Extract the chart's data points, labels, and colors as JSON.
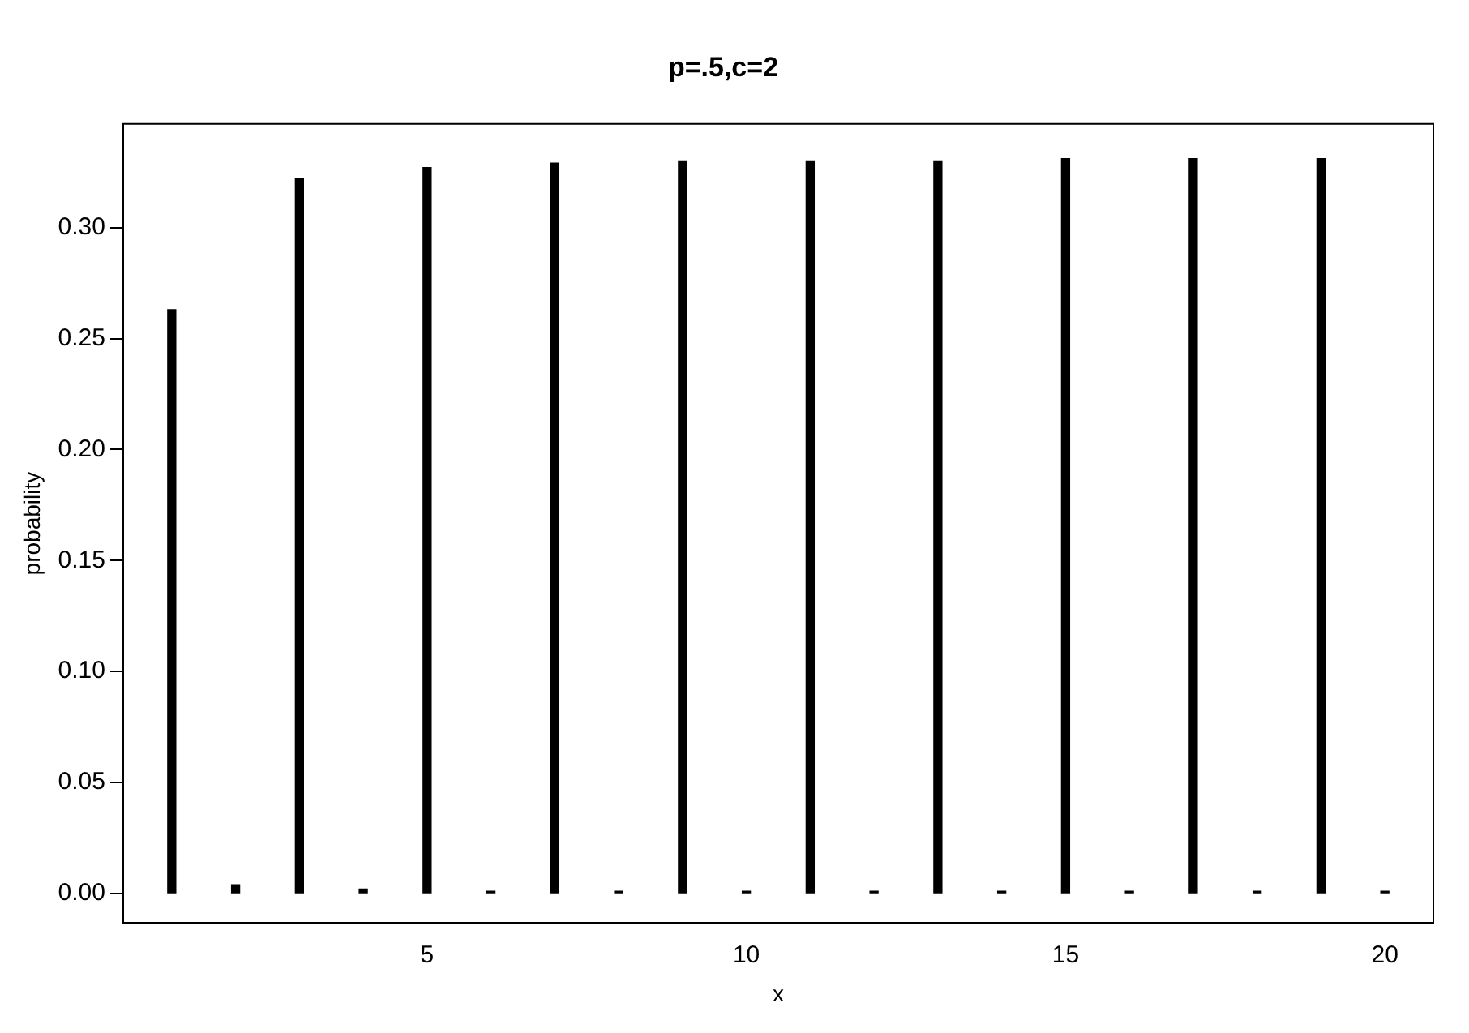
{
  "chart_data": {
    "type": "bar",
    "title": "p=.5,c=2",
    "xlabel": "x",
    "ylabel": "probability",
    "x": [
      1,
      2,
      3,
      4,
      5,
      6,
      7,
      8,
      9,
      10,
      11,
      12,
      13,
      14,
      15,
      16,
      17,
      18,
      19,
      20
    ],
    "values": [
      0.263,
      0.004,
      0.322,
      0.002,
      0.327,
      0.001,
      0.329,
      0.001,
      0.33,
      0.001,
      0.33,
      0.001,
      0.33,
      0.001,
      0.331,
      0.001,
      0.331,
      0.001,
      0.331,
      0.001
    ],
    "color": "#000000",
    "xlim": [
      0.24,
      20.76
    ],
    "xticks": [
      5,
      10,
      15,
      20
    ],
    "ylim": [
      -0.0133,
      0.3467
    ],
    "yticks": [
      {
        "value": 0,
        "label": "0.00"
      },
      {
        "value": 0.05,
        "label": "0.05"
      },
      {
        "value": 0.1,
        "label": "0.10"
      },
      {
        "value": 0.15,
        "label": "0.15"
      },
      {
        "value": 0.2,
        "label": "0.20"
      },
      {
        "value": 0.25,
        "label": "0.25"
      },
      {
        "value": 0.3,
        "label": "0.30"
      }
    ],
    "grid": false,
    "legend": false
  }
}
